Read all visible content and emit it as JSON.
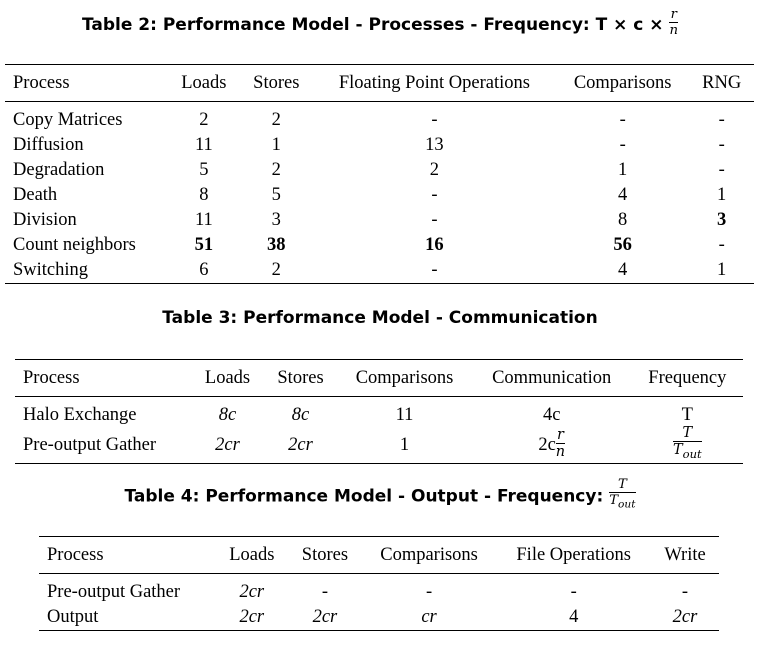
{
  "table2": {
    "caption": "Table 2: Performance Model - Processes - Frequency: T × c ×",
    "caption_frac": {
      "num": "r",
      "den": "n"
    },
    "headers": [
      "Process",
      "Loads",
      "Stores",
      "Floating Point Operations",
      "Comparisons",
      "RNG"
    ],
    "rows": [
      [
        "Copy Matrices",
        "2",
        "2",
        "-",
        "-",
        "-"
      ],
      [
        "Diffusion",
        "11",
        "1",
        "13",
        "-",
        "-"
      ],
      [
        "Degradation",
        "5",
        "2",
        "2",
        "1",
        "-"
      ],
      [
        "Death",
        "8",
        "5",
        "-",
        "4",
        "1"
      ],
      [
        "Division",
        "11",
        "3",
        "-",
        "8",
        "3"
      ],
      [
        "Count neighbors",
        "51",
        "38",
        "16",
        "56",
        "-"
      ],
      [
        "Switching",
        "6",
        "2",
        "-",
        "4",
        "1"
      ]
    ]
  },
  "table3": {
    "caption": "Table 3: Performance Model - Communication",
    "headers": [
      "Process",
      "Loads",
      "Stores",
      "Comparisons",
      "Communication",
      "Frequency"
    ],
    "rows": [
      {
        "process": "Halo Exchange",
        "loads": "8c",
        "stores": "8c",
        "comparisons": "11",
        "communication": "4c",
        "frequency": "T"
      },
      {
        "process": "Pre-output Gather",
        "loads": "2cr",
        "stores": "2cr",
        "comparisons": "1",
        "communication_prefix": "2c",
        "communication_frac": {
          "num": "r",
          "den": "n"
        },
        "frequency_frac": {
          "num": "T",
          "den": "T",
          "den_sub": "out"
        }
      }
    ]
  },
  "table4": {
    "caption": "Table 4: Performance Model - Output - Frequency:",
    "caption_frac": {
      "num": "T",
      "den": "T",
      "den_sub": "out"
    },
    "headers": [
      "Process",
      "Loads",
      "Stores",
      "Comparisons",
      "File Operations",
      "Write"
    ],
    "rows": [
      [
        "Pre-output Gather",
        "2cr",
        "-",
        "-",
        "-",
        "-"
      ],
      [
        "Output",
        "2cr",
        "2cr",
        "cr",
        "4",
        "2cr"
      ]
    ]
  }
}
